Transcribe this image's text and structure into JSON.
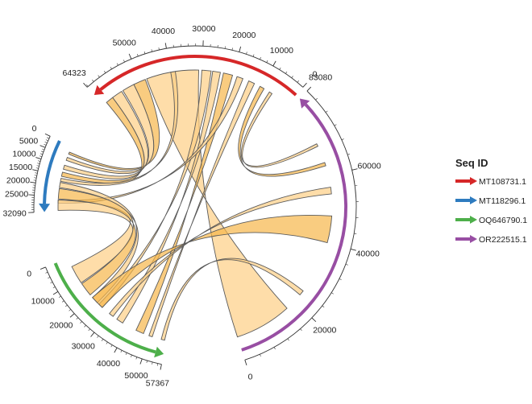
{
  "chart_data": {
    "type": "chord",
    "legend": {
      "title": "Seq ID",
      "placement": "right"
    },
    "sequences": [
      {
        "name": "MT108731.1",
        "length": 64323,
        "color": "#d62728",
        "ticks": [
          0,
          10000,
          20000,
          30000,
          40000,
          50000
        ],
        "tick_labels": [
          "0",
          "10000",
          "20000",
          "30000",
          "40000",
          "50000"
        ],
        "end_label": "64323"
      },
      {
        "name": "MT118296.1",
        "length": 32090,
        "color": "#2e7bbf",
        "ticks": [
          0,
          5000,
          10000,
          15000,
          20000,
          25000
        ],
        "tick_labels": [
          "0",
          "5000",
          "10000",
          "15000",
          "20000",
          "25000"
        ],
        "end_label": "32090"
      },
      {
        "name": "OQ646790.1",
        "length": 57367,
        "color": "#4daf4a",
        "ticks": [
          0,
          10000,
          20000,
          30000,
          40000,
          50000
        ],
        "tick_labels": [
          "0",
          "10000",
          "20000",
          "30000",
          "40000",
          "50000"
        ],
        "end_label": "57367"
      },
      {
        "name": "OR222515.1",
        "length": 83080,
        "color": "#984ea3",
        "ticks": [
          0,
          20000,
          40000,
          60000
        ],
        "tick_labels": [
          "0",
          "20000",
          "40000",
          "60000"
        ],
        "end_label": "83080"
      }
    ],
    "links": [
      {
        "s": 0,
        "a": 31000,
        "b": 48000,
        "t": 3,
        "c": 17000,
        "d": 0
      },
      {
        "s": 0,
        "a": 48500,
        "b": 52500,
        "t": 1,
        "c": 3800,
        "d": 2800
      },
      {
        "s": 0,
        "a": 52500,
        "b": 56500,
        "t": 1,
        "c": 7000,
        "d": 5500
      },
      {
        "s": 0,
        "a": 57000,
        "b": 60500,
        "t": 1,
        "c": 11500,
        "d": 9500
      },
      {
        "s": 0,
        "a": 60500,
        "b": 63000,
        "t": 1,
        "c": 15000,
        "d": 13000
      },
      {
        "s": 0,
        "a": 27000,
        "b": 30000,
        "t": 2,
        "c": 26000,
        "d": 24000
      },
      {
        "s": 0,
        "a": 24000,
        "b": 26500,
        "t": 2,
        "c": 37000,
        "d": 34000
      },
      {
        "s": 0,
        "a": 20000,
        "b": 23000,
        "t": 2,
        "c": 47000,
        "d": 43500
      },
      {
        "s": 0,
        "a": 16500,
        "b": 18500,
        "t": 1,
        "c": 28000,
        "d": 26500
      },
      {
        "s": 0,
        "a": 12500,
        "b": 14500,
        "t": 2,
        "c": 51000,
        "d": 49500
      },
      {
        "s": 0,
        "a": 9000,
        "b": 10500,
        "t": 3,
        "c": 64000,
        "d": 63000
      },
      {
        "s": 0,
        "a": 6000,
        "b": 7000,
        "t": 3,
        "c": 70000,
        "d": 69200
      },
      {
        "s": 1,
        "a": 26500,
        "b": 31500,
        "t": 2,
        "c": 12000,
        "d": 4000
      },
      {
        "s": 1,
        "a": 21000,
        "b": 26000,
        "t": 2,
        "c": 18500,
        "d": 12500
      },
      {
        "s": 1,
        "a": 18000,
        "b": 20500,
        "t": 2,
        "c": 23000,
        "d": 20000
      },
      {
        "s": 1,
        "a": 16000,
        "b": 17500,
        "t": 0,
        "c": 40000,
        "d": 38500
      },
      {
        "s": 2,
        "a": 20000,
        "b": 26000,
        "t": 3,
        "c": 48000,
        "d": 40000
      },
      {
        "s": 2,
        "a": 30000,
        "b": 32000,
        "t": 3,
        "c": 56500,
        "d": 54500
      },
      {
        "s": 2,
        "a": 55000,
        "b": 56500,
        "t": 3,
        "c": 24000,
        "d": 22500
      }
    ]
  }
}
